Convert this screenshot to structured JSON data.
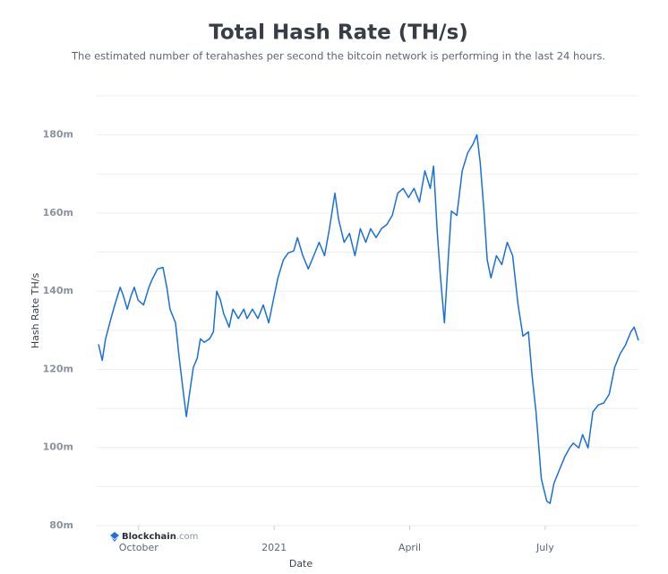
{
  "chart_data": {
    "type": "line",
    "title": "Total Hash Rate (TH/s)",
    "subtitle": "The estimated number of terahashes per second the bitcoin network is performing in the last 24 hours.",
    "x_label": "Date",
    "y_label": "Hash Rate TH/s",
    "watermark": {
      "brand": "Blockchain",
      "suffix": ".com"
    },
    "xlim": [
      2020.676,
      2021.672
    ],
    "xticks": [
      {
        "value": 2020.75,
        "label": "October"
      },
      2021,
      {
        "value": 2021.25,
        "label": "April"
      },
      {
        "value": 2021.5,
        "label": "July"
      }
    ],
    "ylim": [
      80000000,
      190000000
    ],
    "yticks": [
      {
        "value": 80000000,
        "label": "80m"
      },
      {
        "value": 100000000,
        "label": "100m"
      },
      {
        "value": 120000000,
        "label": "120m"
      },
      {
        "value": 140000000,
        "label": "140m"
      },
      {
        "value": 160000000,
        "label": "160m"
      },
      {
        "value": 180000000,
        "label": "180m"
      }
    ],
    "y_minor_ticks": [
      90000000,
      110000000,
      130000000,
      150000000,
      170000000,
      190000000
    ],
    "grid": true,
    "x": [
      2020.676,
      2020.683,
      2020.689,
      2020.699,
      2020.706,
      2020.716,
      2020.722,
      2020.729,
      2020.736,
      2020.742,
      2020.749,
      2020.759,
      2020.769,
      2020.775,
      2020.785,
      2020.795,
      2020.802,
      2020.808,
      2020.818,
      2020.825,
      2020.831,
      2020.838,
      2020.845,
      2020.851,
      2020.858,
      2020.864,
      2020.871,
      2020.881,
      2020.888,
      2020.894,
      2020.901,
      2020.907,
      2020.917,
      2020.924,
      2020.934,
      2020.944,
      2020.95,
      2020.96,
      2020.97,
      2020.98,
      2020.99,
      2021.0,
      2021.007,
      2021.017,
      2021.026,
      2021.036,
      2021.043,
      2021.053,
      2021.063,
      2021.073,
      2021.083,
      2021.093,
      2021.102,
      2021.112,
      2021.119,
      2021.129,
      2021.139,
      2021.149,
      2021.159,
      2021.169,
      2021.178,
      2021.188,
      2021.198,
      2021.208,
      2021.218,
      2021.228,
      2021.238,
      2021.248,
      2021.258,
      2021.268,
      2021.278,
      2021.288,
      2021.294,
      2021.301,
      2021.307,
      2021.314,
      2021.321,
      2021.327,
      2021.337,
      2021.347,
      2021.357,
      2021.367,
      2021.374,
      2021.38,
      2021.387,
      2021.393,
      2021.4,
      2021.41,
      2021.42,
      2021.43,
      2021.44,
      2021.45,
      2021.459,
      2021.469,
      2021.476,
      2021.483,
      2021.493,
      2021.503,
      2021.509,
      2021.516,
      2021.526,
      2021.536,
      2021.545,
      2021.552,
      2021.562,
      2021.569,
      2021.579,
      2021.588,
      2021.598,
      2021.608,
      2021.618,
      2021.628,
      2021.638,
      2021.648,
      2021.658,
      2021.664,
      2021.672
    ],
    "series": [
      {
        "name": "Hash Rate",
        "color": "#1a6fe0",
        "values": [
          126400000,
          122300000,
          127800000,
          133000000,
          136500000,
          141000000,
          138800000,
          135400000,
          138800000,
          141000000,
          137700000,
          136500000,
          141000000,
          143000000,
          145700000,
          146100000,
          141000000,
          135400000,
          131900000,
          122800000,
          115900000,
          107900000,
          114800000,
          120500000,
          122800000,
          127800000,
          126900000,
          127800000,
          129600000,
          140000000,
          137700000,
          134200000,
          130800000,
          135400000,
          133000000,
          135400000,
          133000000,
          135400000,
          133000000,
          136500000,
          131900000,
          138800000,
          143400000,
          148000000,
          149800000,
          150300000,
          153700000,
          149100000,
          145700000,
          149100000,
          152500000,
          149100000,
          156000000,
          165100000,
          158300000,
          152500000,
          154800000,
          149100000,
          156000000,
          152500000,
          156000000,
          153700000,
          156000000,
          157100000,
          159400000,
          165100000,
          166300000,
          164000000,
          166300000,
          162800000,
          170800000,
          166300000,
          172000000,
          154800000,
          143400000,
          131900000,
          148000000,
          160500000,
          159400000,
          170800000,
          175400000,
          177700000,
          180000000,
          173100000,
          160500000,
          148000000,
          143400000,
          149100000,
          146800000,
          152500000,
          149100000,
          136500000,
          128500000,
          129600000,
          118200000,
          109100000,
          91900000,
          86200000,
          85700000,
          90800000,
          94200000,
          97600000,
          99900000,
          101100000,
          99900000,
          103300000,
          99900000,
          109100000,
          110900000,
          111400000,
          113600000,
          120500000,
          123900000,
          126200000,
          129600000,
          130800000,
          127400000
        ]
      }
    ]
  }
}
